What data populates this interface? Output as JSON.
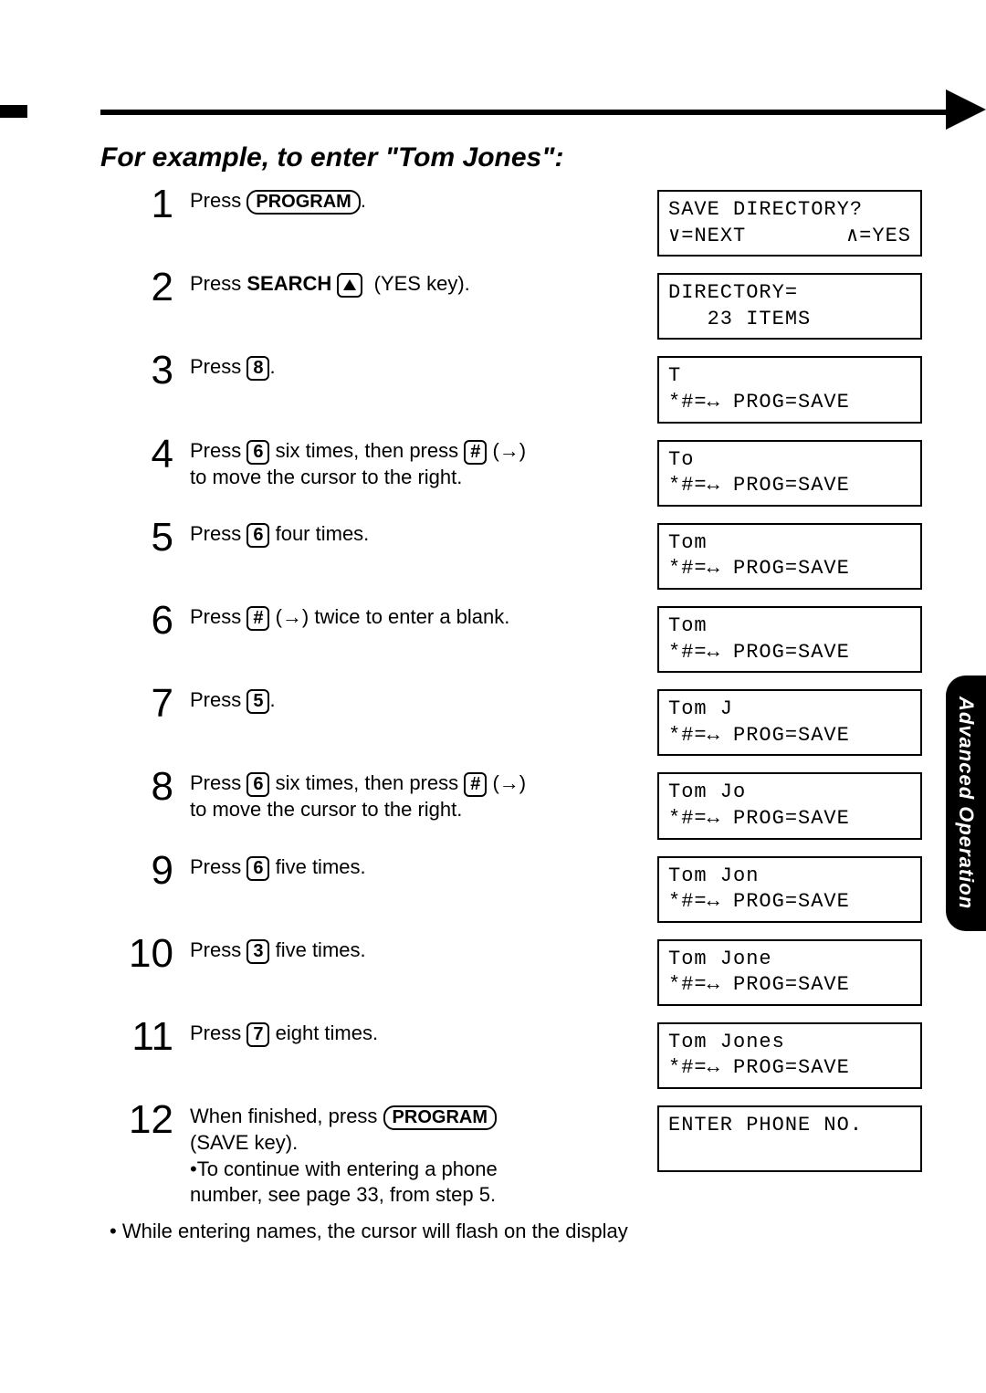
{
  "heading": "For example, to enter \"Tom Jones\":",
  "side_tab": "Advanced Operation",
  "footnote": "• While entering names, the cursor will flash on the display",
  "prog_save_line": "*#=↔ PROG=SAVE",
  "steps": [
    {
      "n": "1",
      "html": "Press <span class='keycap pill'>PROGRAM</span>.",
      "display": [
        "SAVE DIRECTORY?",
        {
          "left": "∨=NEXT",
          "right": "∧=YES"
        }
      ]
    },
    {
      "n": "2",
      "html": "Press <b>SEARCH</b> <span class='keycap'><span class='tri-up'></span></span>&nbsp; (<span style='font-variant:small-caps'>YES</span> key).",
      "display": [
        "DIRECTORY=",
        "   23 ITEMS"
      ]
    },
    {
      "n": "3",
      "html": "Press <span class='keycap'>8</span>.",
      "display": [
        "T",
        "PROGSAVE"
      ]
    },
    {
      "n": "4",
      "html": "Press <span class='keycap'>6</span> six times, then press <span class='keycap'>#</span> (→) to move the cursor to the right.",
      "display": [
        "To",
        "PROGSAVE"
      ]
    },
    {
      "n": "5",
      "html": "Press <span class='keycap'>6</span> four times.",
      "display": [
        "Tom",
        "PROGSAVE"
      ]
    },
    {
      "n": "6",
      "html": "Press <span class='keycap'>#</span> (→) twice to enter a blank.",
      "display": [
        "Tom ",
        "PROGSAVE"
      ]
    },
    {
      "n": "7",
      "html": "Press <span class='keycap'>5</span>.",
      "display": [
        "Tom J",
        "PROGSAVE"
      ]
    },
    {
      "n": "8",
      "html": "Press <span class='keycap'>6</span> six times, then press <span class='keycap'>#</span> (→) to move the cursor to the right.",
      "display": [
        "Tom Jo",
        "PROGSAVE"
      ]
    },
    {
      "n": "9",
      "html": "Press <span class='keycap'>6</span> five times.",
      "display": [
        "Tom Jon",
        "PROGSAVE"
      ]
    },
    {
      "n": "10",
      "html": "Press <span class='keycap'>3</span> five times.",
      "display": [
        "Tom Jone",
        "PROGSAVE"
      ]
    },
    {
      "n": "11",
      "html": "Press <span class='keycap'>7</span> eight times.",
      "display": [
        "Tom Jones",
        "PROGSAVE"
      ]
    },
    {
      "n": "12",
      "html": "When finished, press <span class='keycap pill'>PROGRAM</span> (<span style='font-variant:small-caps'>SAVE</span> key).<br>•To continue with entering a phone number, see page 33, from step 5.",
      "display": [
        "ENTER PHONE NO.",
        " "
      ]
    }
  ]
}
